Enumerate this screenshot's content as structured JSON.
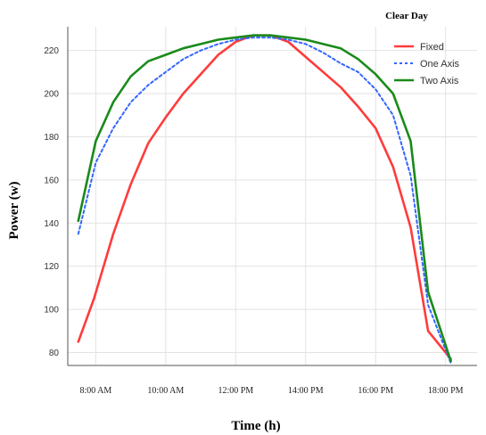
{
  "chart_data": {
    "type": "line",
    "title": "Clear Day",
    "xlabel": "Time (h)",
    "ylabel": "Power (w)",
    "ylim": [
      74,
      231
    ],
    "xlim": [
      7.2,
      18.9
    ],
    "yticks": [
      80,
      100,
      120,
      140,
      160,
      180,
      200,
      220
    ],
    "xticks": [
      {
        "value": 8,
        "label": "8:00 AM"
      },
      {
        "value": 10,
        "label": "10:00 AM"
      },
      {
        "value": 12,
        "label": "12:00 PM"
      },
      {
        "value": 14,
        "label": "14:00 PM"
      },
      {
        "value": 16,
        "label": "16:00 PM"
      },
      {
        "value": 18,
        "label": "18:00 PM"
      }
    ],
    "grid": true,
    "legend_position": "top-right",
    "series": [
      {
        "name": "Fixed",
        "color": "#ff3b3b",
        "style": "solid",
        "x": [
          7.5,
          7.95,
          8.5,
          9.0,
          9.5,
          10.0,
          10.5,
          11.0,
          11.5,
          12.0,
          12.5,
          13.0,
          13.5,
          14.0,
          14.5,
          15.0,
          15.5,
          16.0,
          16.5,
          17.0,
          17.5,
          18.15
        ],
        "y": [
          85,
          105,
          135,
          158,
          177,
          189,
          200,
          209,
          218,
          224,
          227,
          227,
          224,
          217,
          210,
          203,
          194,
          184,
          166,
          138,
          90,
          77
        ]
      },
      {
        "name": "One Axis",
        "color": "#3366ff",
        "style": "dotted",
        "x": [
          7.5,
          8.0,
          8.5,
          9.0,
          9.5,
          10.0,
          10.5,
          11.0,
          11.5,
          12.0,
          12.5,
          13.0,
          13.5,
          14.0,
          14.5,
          15.0,
          15.5,
          16.0,
          16.5,
          17.0,
          17.5,
          18.15
        ],
        "y": [
          135,
          168,
          184,
          196,
          204,
          210,
          216,
          220,
          223,
          225,
          226,
          226,
          225,
          223,
          219,
          214,
          210,
          202,
          190,
          162,
          102,
          75
        ]
      },
      {
        "name": "Two Axis",
        "color": "#1a8a1a",
        "style": "solid",
        "x": [
          7.5,
          8.0,
          8.5,
          9.0,
          9.5,
          10.0,
          10.5,
          11.0,
          11.5,
          12.0,
          12.5,
          13.0,
          13.5,
          14.0,
          14.5,
          15.0,
          15.5,
          16.0,
          16.5,
          17.0,
          17.5,
          18.15
        ],
        "y": [
          141,
          178,
          196,
          208,
          215,
          218,
          221,
          223,
          225,
          226,
          227,
          227,
          226,
          225,
          223,
          221,
          216,
          209,
          200,
          178,
          108,
          76
        ]
      }
    ]
  }
}
